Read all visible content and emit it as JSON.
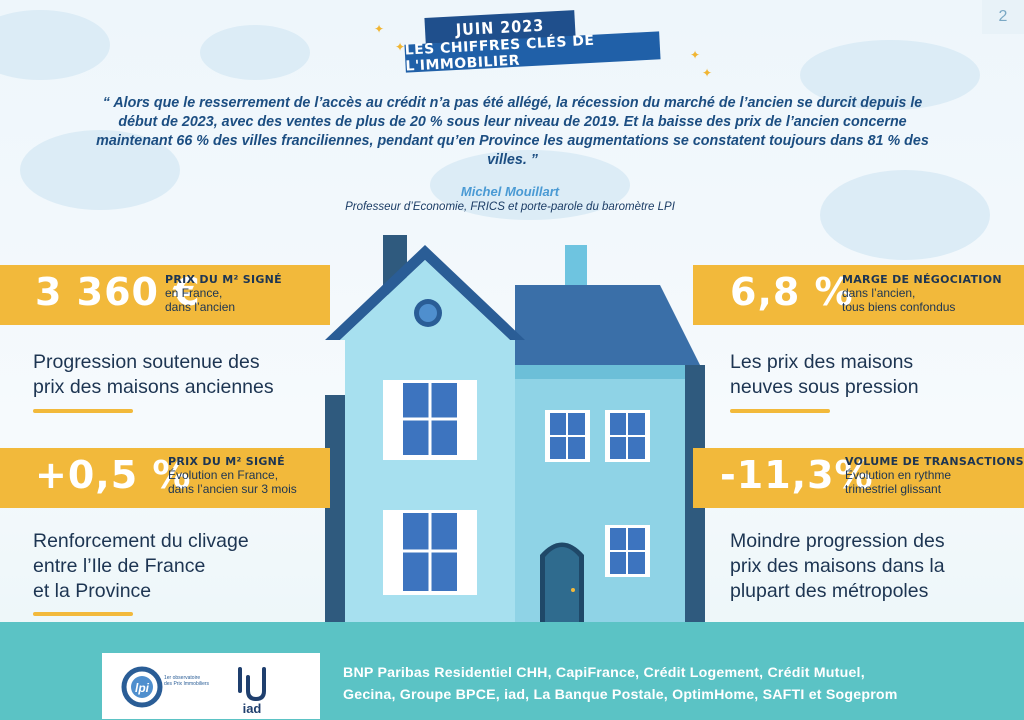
{
  "page_number": "2",
  "banner": {
    "date": "JUIN 2023",
    "title": "LES CHIFFRES CLÉS DE L'IMMOBILIER"
  },
  "quote": {
    "text": "“ Alors que le resserrement de l’accès au crédit n’a pas été allégé, la récession du marché de l’ancien se durcit depuis le début de 2023, avec des ventes de plus de 20 % sous leur niveau de 2019. Et la baisse des prix de l’ancien concerne maintenant 66 % des villes franciliennes, pendant qu’en Province les augmentations se constatent toujours dans 81 % des villes. ”",
    "author": "Michel Mouillart",
    "role": "Professeur d’Economie, FRICS et porte-parole du baromètre LPI"
  },
  "stats": {
    "top_left": {
      "value": "3 360 €",
      "title": "PRIX DU M² SIGNÉ",
      "line1": "en France,",
      "line2": "dans l’ancien",
      "headline1": "Progression soutenue des",
      "headline2": "prix des maisons anciennes"
    },
    "bottom_left": {
      "value": "+0,5 %",
      "title": "PRIX DU M² SIGNÉ",
      "line1": "Évolution en France,",
      "line2": "dans l’ancien sur 3 mois",
      "headline1": "Renforcement du clivage",
      "headline2": "entre l’Ile de France",
      "headline3": "et la Province"
    },
    "top_right": {
      "value": "6,8 %",
      "title": "MARGE DE NÉGOCIATION",
      "line1": "dans l’ancien,",
      "line2": "tous biens confondus",
      "headline1": "Les prix des maisons",
      "headline2": "neuves sous pression"
    },
    "bottom_right": {
      "value": "-11,3%",
      "title": "VOLUME DE TRANSACTIONS",
      "line1": "Évolution en rythme",
      "line2": "trimestriel glissant",
      "headline1": "Moindre progression des",
      "headline2": "prix des maisons dans la",
      "headline3": "plupart des métropoles"
    }
  },
  "footer": {
    "logo1": "lpi",
    "logo1_caption": "1er observatoire des Prix Immobiliers",
    "logo2": "iad",
    "partners_line1": "BNP Paribas Residentiel CHH, CapiFrance, Crédit Logement, Crédit Mutuel,",
    "partners_line2": "Gecina, Groupe BPCE, iad, La Banque Postale, OptimHome, SAFTI et Sogeprom"
  },
  "colors": {
    "accent": "#f2b93b",
    "navy": "#1f4f8c",
    "teal": "#5bc3c5"
  }
}
